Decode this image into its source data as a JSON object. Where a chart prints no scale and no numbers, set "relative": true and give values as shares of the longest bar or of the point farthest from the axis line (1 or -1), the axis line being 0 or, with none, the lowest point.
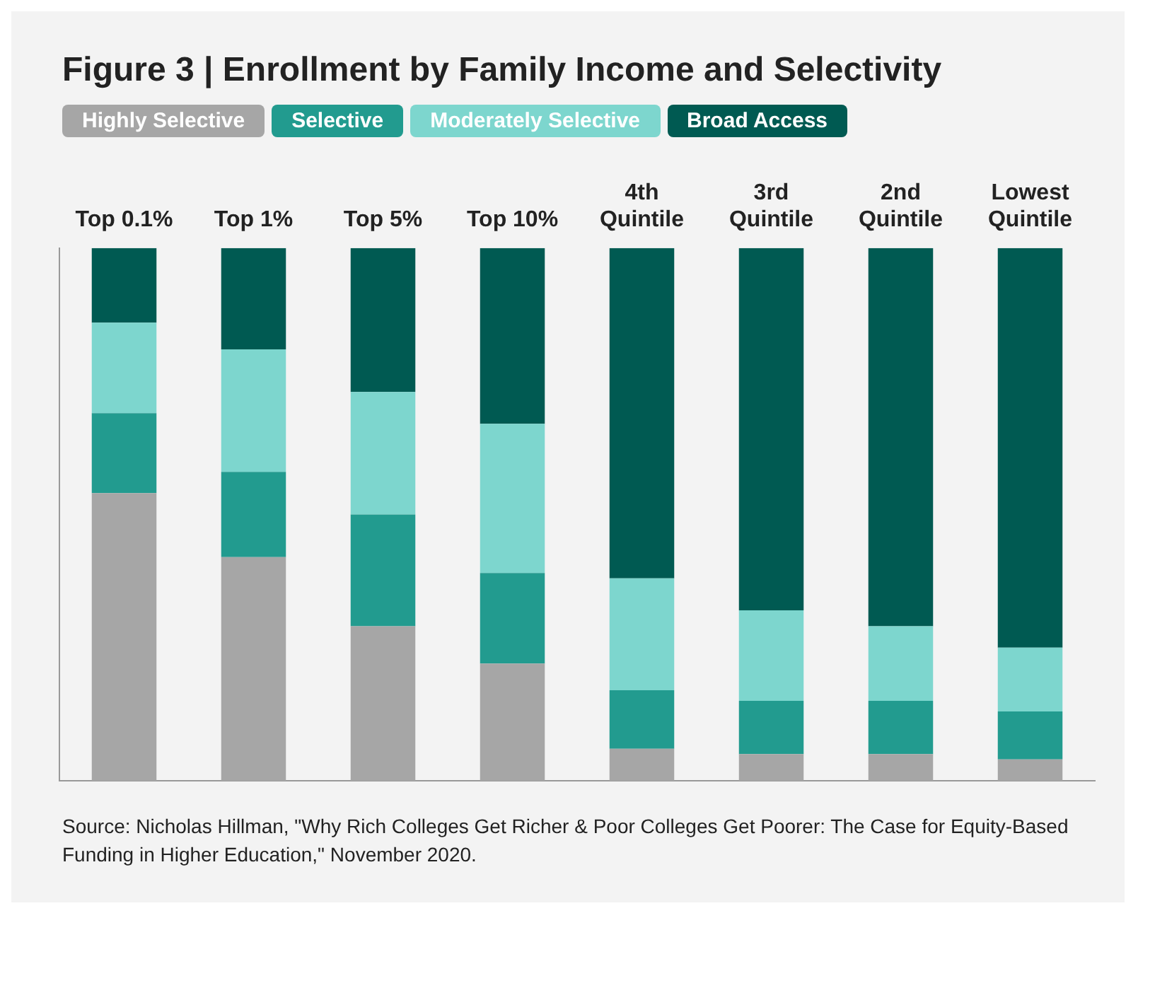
{
  "chart_data": {
    "type": "bar",
    "title": "Figure 3 | Enrollment by Family Income and Selectivity",
    "categories": [
      "Top 0.1%",
      "Top 1%",
      "Top 5%",
      "Top 10%",
      "4th Quintile",
      "3rd Quintile",
      "2nd Quintile",
      "Lowest Quintile"
    ],
    "stacked": true,
    "relative": true,
    "legend": "top left",
    "grid": false,
    "series": [
      {
        "name": "Highly Selective",
        "color": "#a6a6a6",
        "values": [
          0.54,
          0.42,
          0.29,
          0.22,
          0.06,
          0.05,
          0.05,
          0.04
        ]
      },
      {
        "name": "Selective",
        "color": "#229b8f",
        "values": [
          0.15,
          0.16,
          0.21,
          0.17,
          0.11,
          0.1,
          0.1,
          0.09
        ]
      },
      {
        "name": "Moderately Selective",
        "color": "#7dd6ce",
        "values": [
          0.17,
          0.23,
          0.23,
          0.28,
          0.21,
          0.17,
          0.14,
          0.12
        ]
      },
      {
        "name": "Broad Access",
        "color": "#005a52",
        "values": [
          0.14,
          0.19,
          0.27,
          0.33,
          0.62,
          0.68,
          0.71,
          0.75
        ]
      }
    ],
    "annotations": [
      "Source: Nicholas Hillman, \"Why Rich Colleges Get Richer & Poor Colleges Get Poorer: The Case for Equity-Based Funding in Higher Education,\" November 2020."
    ]
  }
}
